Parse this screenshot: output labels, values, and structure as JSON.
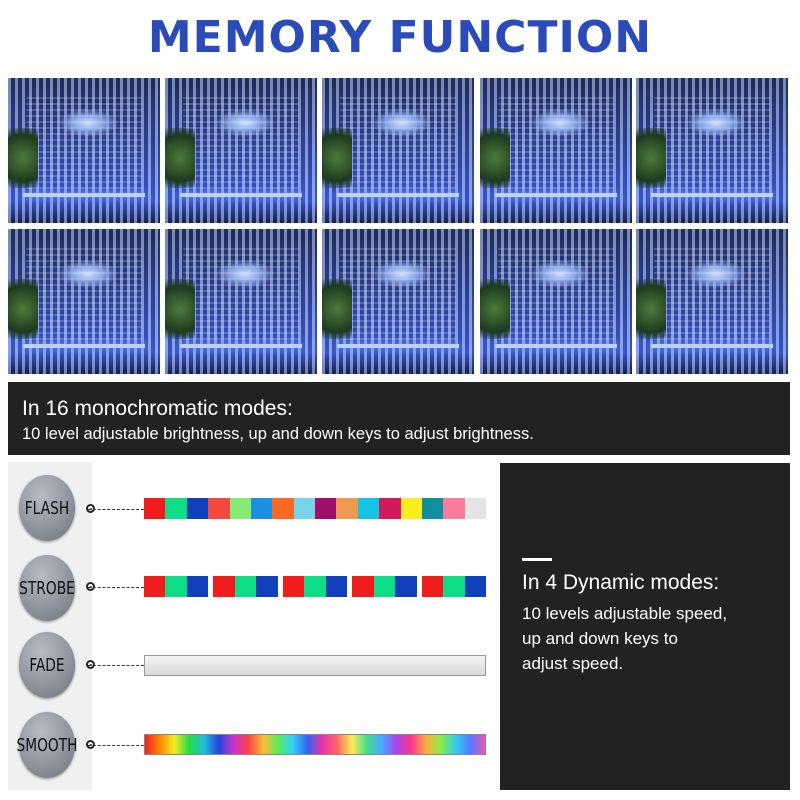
{
  "title": "MEMORY FUNCTION",
  "photos_count_label": "",
  "mono_band": {
    "heading": "In 16 monochromatic modes:",
    "body": "10 level adjustable brightness, up and down keys to adjust brightness."
  },
  "modes": [
    {
      "label": "FLASH",
      "colors": [
        "#f21c1c",
        "#0fdc86",
        "#1040bc",
        "#f24a3e",
        "#86ea74",
        "#1a90de",
        "#fa6a22",
        "#78d4ea",
        "#a0106a",
        "#ee9a50",
        "#14c4e2",
        "#d41a5a",
        "#fcec22",
        "#10909c",
        "#f87c9c",
        "#e4e4e4"
      ]
    },
    {
      "label": "STROBE",
      "colors": [
        "#f21c1c",
        "#0fdc86",
        "#1040bc"
      ],
      "groups": 5
    },
    {
      "label": "FADE"
    },
    {
      "label": "SMOOTH"
    }
  ],
  "dynamic_panel": {
    "heading": "In 4 Dynamic modes:",
    "lines": [
      "10 levels adjustable speed,",
      "up and down keys to",
      "adjust speed."
    ]
  },
  "colors": {
    "title": "#2b4cb8",
    "panel": "#222222"
  }
}
